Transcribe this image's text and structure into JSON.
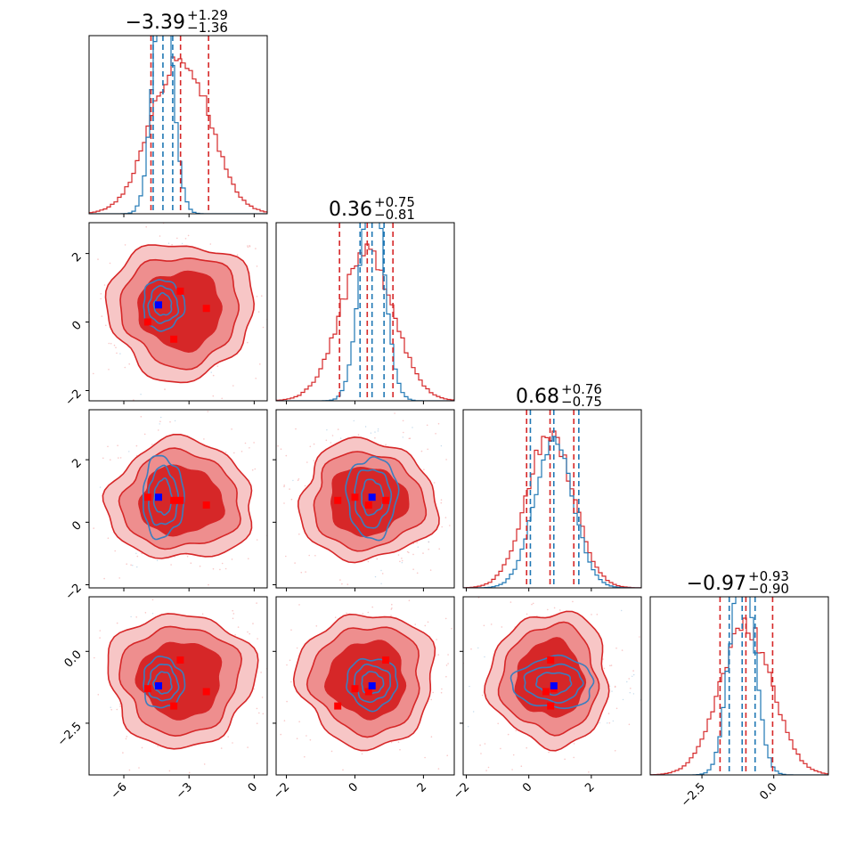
{
  "chart_data": {
    "type": "corner",
    "parameters": [
      {
        "range": [
          -7.6,
          0.6
        ],
        "ticks": [
          {
            "v": -6,
            "label": "−6"
          },
          {
            "v": -3,
            "label": "−3"
          },
          {
            "v": 0,
            "label": "0"
          }
        ]
      },
      {
        "range": [
          -2.3,
          2.9
        ],
        "ticks": [
          {
            "v": -2,
            "label": "−2"
          },
          {
            "v": 0,
            "label": "0"
          },
          {
            "v": 2,
            "label": "2"
          }
        ]
      },
      {
        "range": [
          -2.1,
          3.6
        ],
        "ticks": [
          {
            "v": -2,
            "label": "−2"
          },
          {
            "v": 0,
            "label": "0"
          },
          {
            "v": 2,
            "label": "2"
          }
        ]
      },
      {
        "range": [
          -4.3,
          1.9
        ],
        "ticks": [
          {
            "v": -2.5,
            "label": "−2.5"
          },
          {
            "v": 0,
            "label": "0.0"
          }
        ]
      }
    ],
    "summary_titles": [
      {
        "value": "−3.39",
        "plus": "+1.29",
        "minus": "−1.36"
      },
      {
        "value": "0.36",
        "plus": "+0.75",
        "minus": "−0.81"
      },
      {
        "value": "0.68",
        "plus": "+0.76",
        "minus": "−0.75"
      },
      {
        "value": "−0.97",
        "plus": "+0.93",
        "minus": "−0.90"
      }
    ],
    "series": [
      {
        "color": "#d62728",
        "fill_light": "#f08c8c",
        "fill_dark": "#d62728",
        "mean": [
          -3.39,
          0.36,
          0.68,
          -0.97
        ],
        "sd": [
          1.32,
          0.78,
          0.75,
          0.91
        ],
        "quantiles": [
          [
            -4.75,
            -3.39,
            -2.1
          ],
          [
            -0.45,
            0.36,
            1.11
          ],
          [
            -0.07,
            0.68,
            1.44
          ],
          [
            -1.87,
            -0.97,
            -0.04
          ]
        ]
      },
      {
        "color": "#1f77b4",
        "mean": [
          -4.2,
          0.5,
          0.8,
          -1.1
        ],
        "sd": [
          0.45,
          0.35,
          0.62,
          0.42
        ],
        "quantiles": [
          [
            -4.65,
            -4.2,
            -3.75
          ],
          [
            0.15,
            0.5,
            0.85
          ],
          [
            0.05,
            0.8,
            1.6
          ],
          [
            -1.55,
            -1.1,
            -0.65
          ]
        ]
      }
    ],
    "marker_points": {
      "red": [
        [
          -4.9,
          0.0,
          0.8,
          -1.3
        ],
        [
          -3.7,
          -0.5,
          0.7,
          -1.9
        ],
        [
          -3.4,
          0.9,
          0.7,
          -0.3
        ],
        [
          -2.2,
          0.4,
          0.55,
          -1.4
        ]
      ],
      "blue": [
        -4.4,
        0.5,
        0.8,
        -1.2
      ]
    }
  }
}
